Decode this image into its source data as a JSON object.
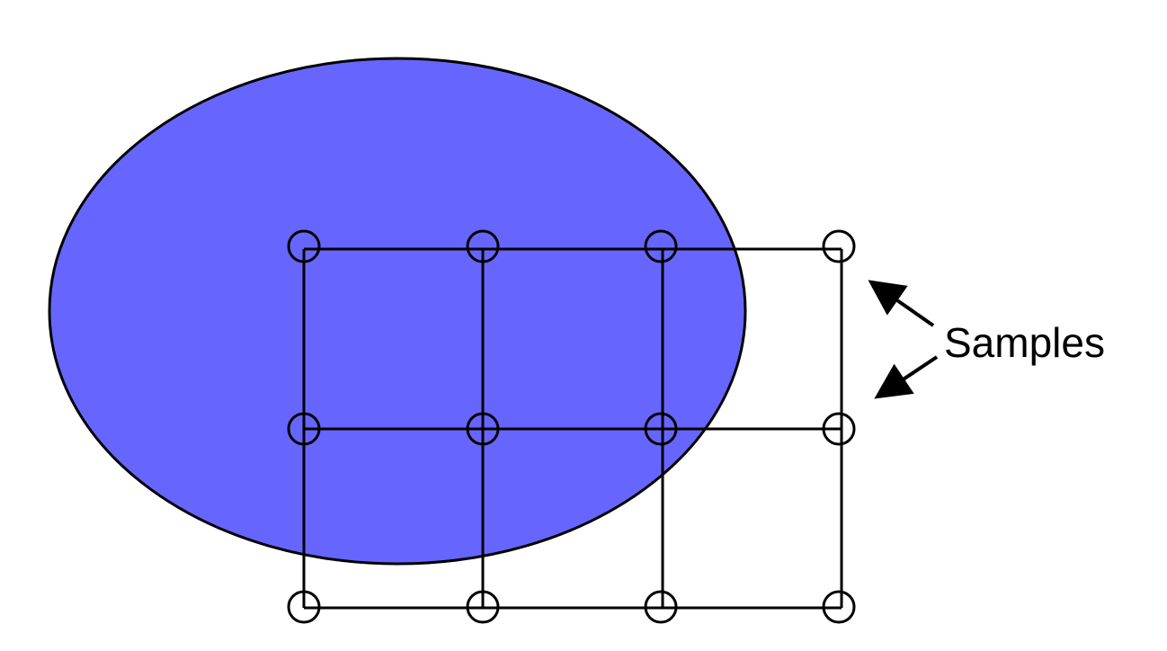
{
  "diagram": {
    "label": "Samples",
    "colors": {
      "shape_fill": "#6666ff",
      "stroke": "#000000",
      "background": "#ffffff"
    },
    "grid": {
      "rows": 3,
      "columns": 4
    }
  }
}
